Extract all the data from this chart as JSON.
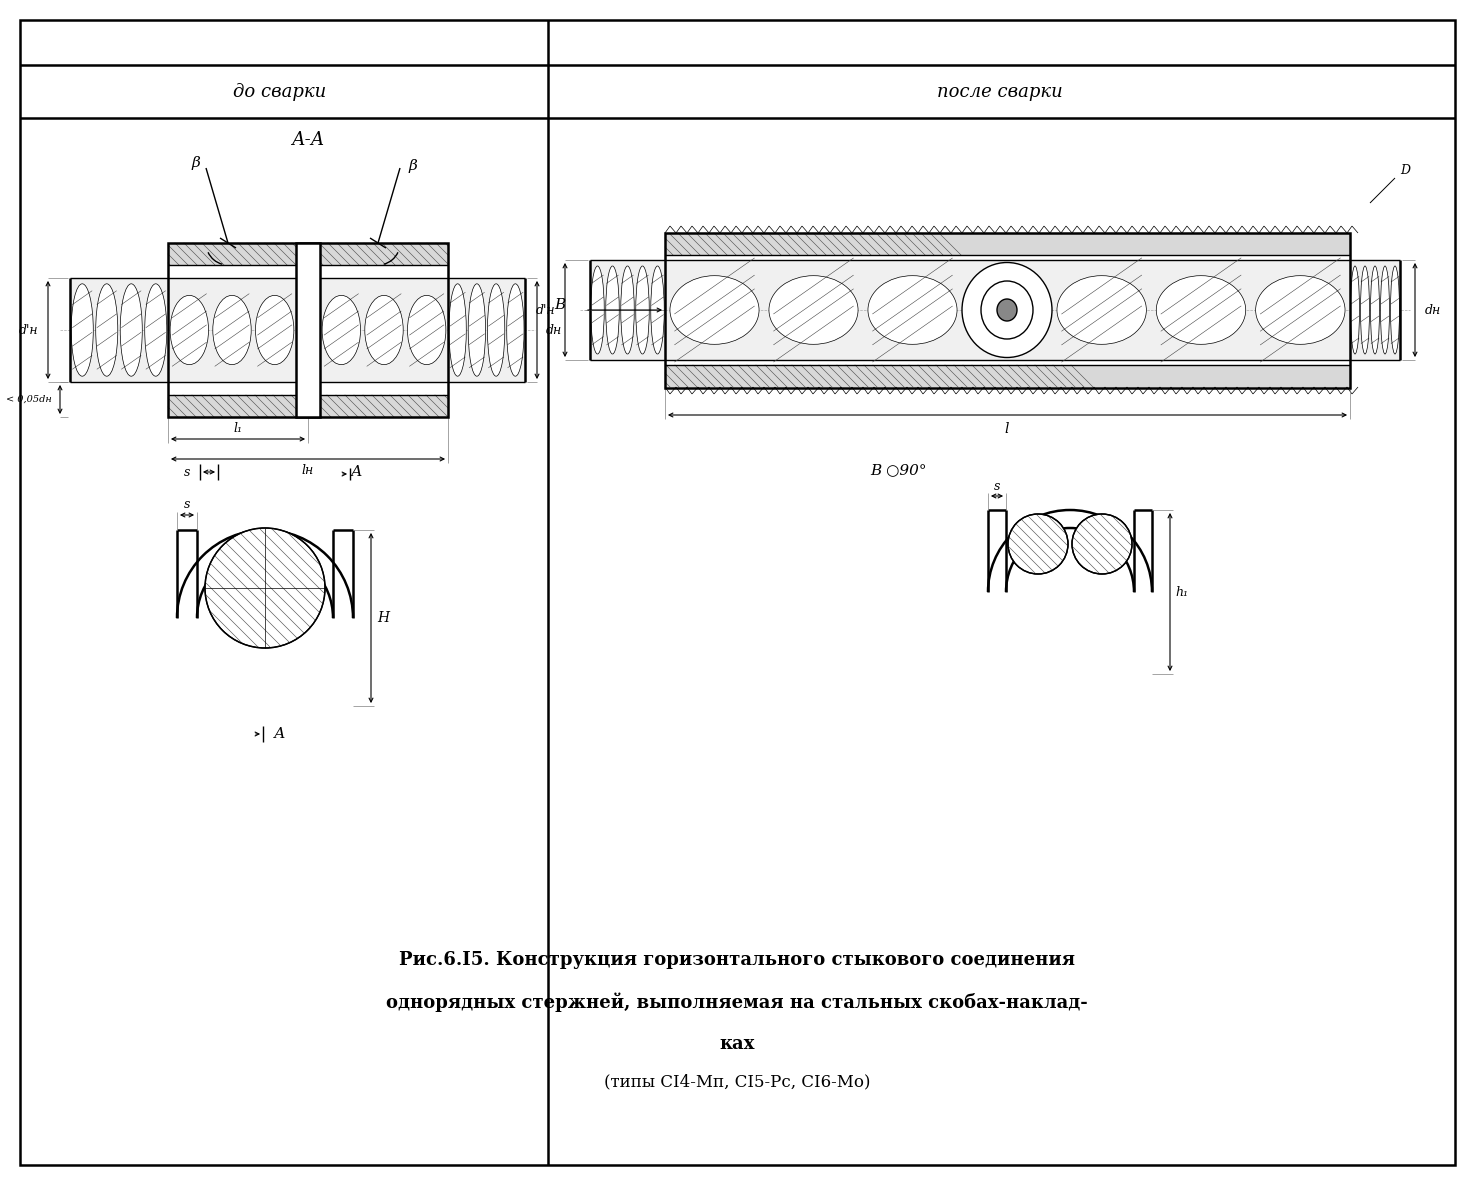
{
  "bg_color": "#ffffff",
  "header_left": "до сварки",
  "header_right": "после сварки",
  "caption_line1": "Рис.6.I5. Конструкция горизонтального стыкового соединения",
  "caption_line2": "однорядных стержней, выполняемая на стальных скобах-наклад-",
  "caption_line3": "ках",
  "caption_line4": "(типы СI4-Мп, СI5-Рс, СI6-Мо)",
  "figsize": [
    14.75,
    11.94
  ],
  "dpi": 100
}
